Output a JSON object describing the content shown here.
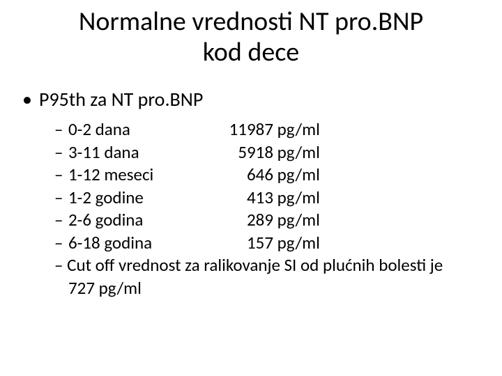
{
  "title_line1": "Normalne vrednosti NT pro.BNP",
  "title_line2": "kod dece",
  "heading": "P95th za NT pro.BNP",
  "rows": [
    {
      "age": "0-2   dana",
      "value": "11987",
      "unit": "pg/ml"
    },
    {
      "age": "3-11 dana",
      "value": "5918",
      "unit": " pg/ml"
    },
    {
      "age": "1-12 meseci",
      "value": "646",
      "unit": "pg/ml"
    },
    {
      "age": "1-2   godine",
      "value": "413",
      "unit": "pg/ml"
    },
    {
      "age": "2-6   godina",
      "value": "289",
      "unit": "pg/ml"
    },
    {
      "age": "6-18 godina",
      "value": "157",
      "unit": "pg/ml"
    }
  ],
  "cutoff": "Cut off vrednost za ralikovanje SI od plućnih bolesti je  727 pg/ml",
  "colors": {
    "background": "#ffffff",
    "text": "#000000"
  },
  "typography": {
    "title_fontsize_pt": 38,
    "body_fontsize_pt": 28,
    "sub_fontsize_pt": 25,
    "font_family": "Calibri"
  }
}
